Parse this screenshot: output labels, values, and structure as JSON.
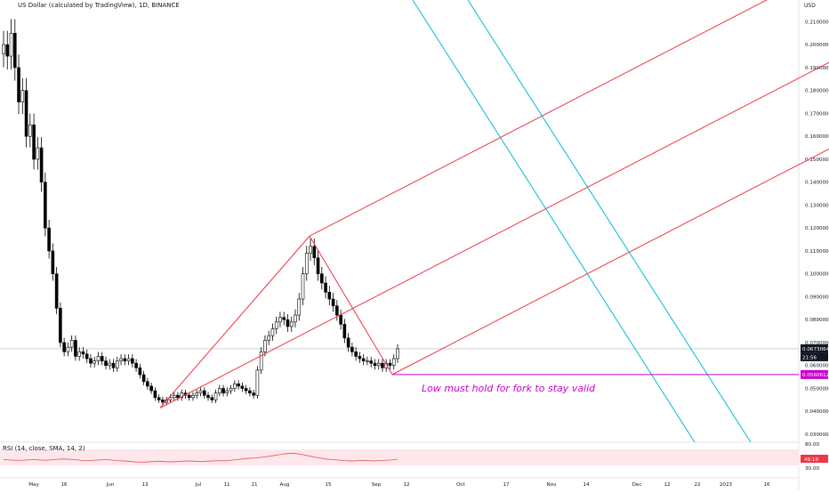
{
  "header": {
    "title": "US Dollar (calculated by TradingView), 1D, BINANCE",
    "unit": "USD"
  },
  "annotation": "Low must hold for fork to stay valid",
  "rsi": {
    "title": "RSI (14, close, SMA, 14, 2)",
    "ticks": [
      "80.00",
      "30.00"
    ],
    "current_label": "49.19",
    "values": [
      48,
      47,
      46,
      46,
      47,
      48,
      47,
      46,
      47,
      49,
      50,
      49,
      48,
      46,
      45,
      46,
      47,
      48,
      47,
      45,
      44,
      43,
      41,
      40,
      41,
      42,
      43,
      42,
      41,
      42,
      43,
      44,
      43,
      42,
      43,
      44,
      45,
      44,
      46,
      48,
      50,
      52,
      53,
      55,
      57,
      60,
      63,
      66,
      68,
      67,
      64,
      60,
      56,
      53,
      50,
      48,
      47,
      45,
      44,
      44,
      46,
      45,
      44,
      45,
      46,
      47,
      49
    ]
  },
  "chart_data": {
    "type": "candlestick",
    "y_range": [
      0.0265,
      0.2195
    ],
    "y_ticks": [
      0.21,
      0.2,
      0.19,
      0.18,
      0.17,
      0.16,
      0.15,
      0.14,
      0.13,
      0.12,
      0.11,
      0.1,
      0.09,
      0.08,
      0.07,
      0.06,
      0.05,
      0.04,
      0.03
    ],
    "y_tick_labels": [
      "0.21000000",
      "0.20000000",
      "0.19000000",
      "0.18000000",
      "0.17000000",
      "0.16000000",
      "0.15000000",
      "0.14000000",
      "0.13000000",
      "0.12000000",
      "0.11000000",
      "0.10000000",
      "0.09000000",
      "0.08000000",
      "0.07000000",
      "0.06000000",
      "0.05000000",
      "0.04000000",
      "0.03000000"
    ],
    "x_ticks": [
      "May",
      "16",
      "Jun",
      "13",
      "Jul",
      "11",
      "21",
      "Aug",
      "15",
      "Sep",
      "12",
      "Oct",
      "17",
      "Nov",
      "14",
      "Dec",
      "12",
      "22",
      "2023",
      "16"
    ],
    "last_price_label": "0.06730644",
    "countdown_label": "21:56",
    "low_price_label": "0.05606125",
    "low_price": 0.05606125,
    "closes": [
      0.2,
      0.195,
      0.205,
      0.19,
      0.175,
      0.18,
      0.16,
      0.165,
      0.15,
      0.155,
      0.14,
      0.12,
      0.11,
      0.1,
      0.085,
      0.07,
      0.066,
      0.068,
      0.071,
      0.064,
      0.066,
      0.065,
      0.063,
      0.061,
      0.062,
      0.064,
      0.062,
      0.06,
      0.061,
      0.059,
      0.062,
      0.063,
      0.062,
      0.063,
      0.061,
      0.059,
      0.056,
      0.053,
      0.051,
      0.049,
      0.046,
      0.045,
      0.044,
      0.045,
      0.046,
      0.047,
      0.046,
      0.048,
      0.047,
      0.046,
      0.047,
      0.048,
      0.049,
      0.047,
      0.046,
      0.045,
      0.048,
      0.05,
      0.048,
      0.049,
      0.05,
      0.052,
      0.051,
      0.05,
      0.049,
      0.048,
      0.047,
      0.058,
      0.066,
      0.071,
      0.073,
      0.076,
      0.079,
      0.081,
      0.08,
      0.077,
      0.079,
      0.082,
      0.089,
      0.1,
      0.109,
      0.112,
      0.107,
      0.1,
      0.096,
      0.092,
      0.089,
      0.086,
      0.082,
      0.078,
      0.072,
      0.068,
      0.066,
      0.064,
      0.063,
      0.062,
      0.062,
      0.061,
      0.06,
      0.061,
      0.059,
      0.061,
      0.06,
      0.063,
      0.0673
    ]
  },
  "colors": {
    "pitchfork": "#f23645",
    "parallel": "#00bcd4",
    "low_line": "#cc00cc",
    "rsi_line": "#e0555c",
    "rsi_band": "#fde7ea",
    "price_tag": "#131722"
  }
}
